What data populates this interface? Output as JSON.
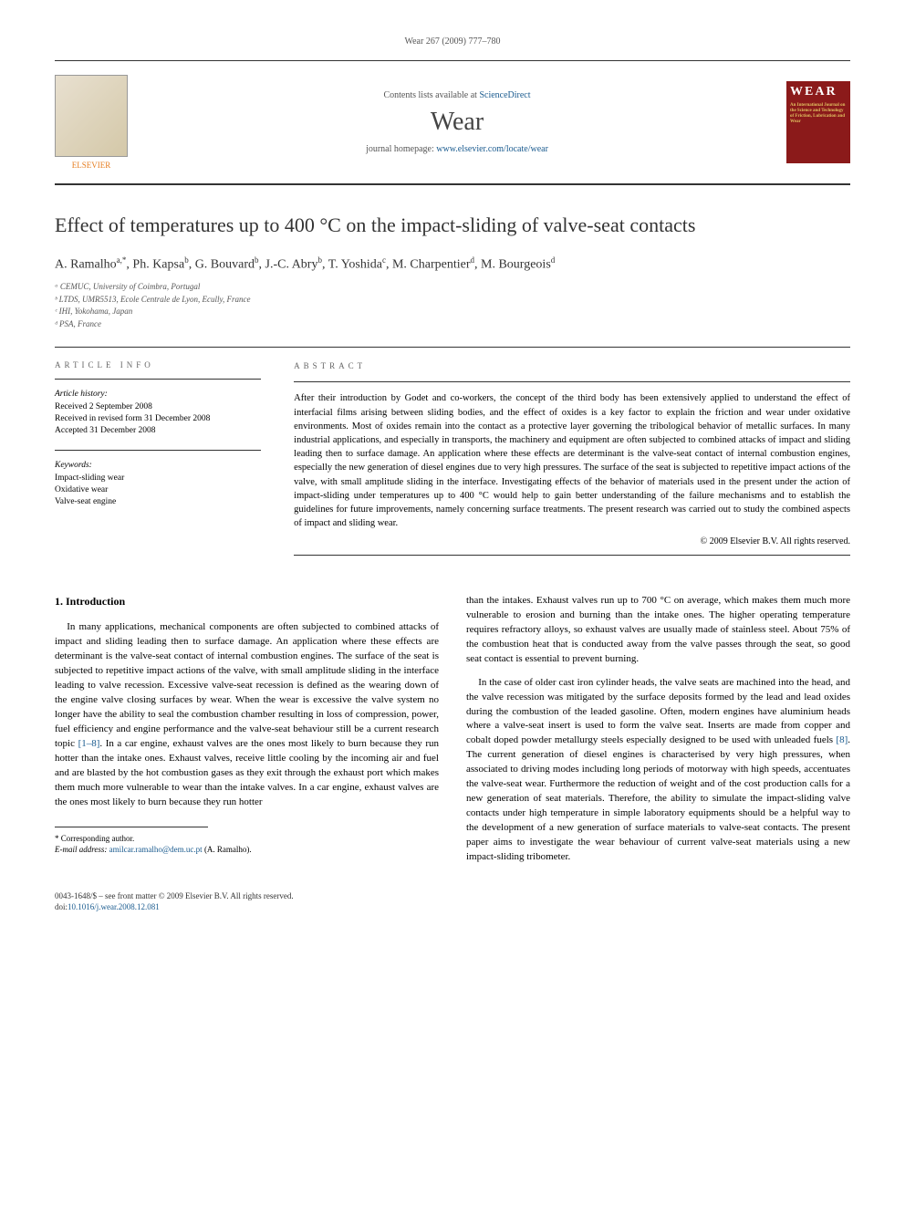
{
  "header": {
    "citation": "Wear 267 (2009) 777–780"
  },
  "banner": {
    "avail_prefix": "Contents lists available at ",
    "avail_link": "ScienceDirect",
    "journal": "Wear",
    "homepage_prefix": "journal homepage: ",
    "homepage_link": "www.elsevier.com/locate/wear",
    "publisher": "ELSEVIER",
    "cover_text": "WEAR"
  },
  "article": {
    "title": "Effect of temperatures up to 400 °C on the impact-sliding of valve-seat contacts",
    "authors_html": "A. Ramalho<sup>a,*</sup>, Ph. Kapsa<sup>b</sup>, G. Bouvard<sup>b</sup>, J.-C. Abry<sup>b</sup>, T. Yoshida<sup>c</sup>, M. Charpentier<sup>d</sup>, M. Bourgeois<sup>d</sup>",
    "affiliations": [
      "ᵃ CEMUC, University of Coimbra, Portugal",
      "ᵇ LTDS, UMR5513, Ecole Centrale de Lyon, Ecully, France",
      "ᶜ IHI, Yokohama, Japan",
      "ᵈ PSA, France"
    ]
  },
  "info": {
    "label": "ARTICLE INFO",
    "history_label": "Article history:",
    "received": "Received 2 September 2008",
    "revised": "Received in revised form 31 December 2008",
    "accepted": "Accepted 31 December 2008",
    "keywords_label": "Keywords:",
    "keywords": [
      "Impact-sliding wear",
      "Oxidative wear",
      "Valve-seat engine"
    ]
  },
  "abstract": {
    "label": "ABSTRACT",
    "text": "After their introduction by Godet and co-workers, the concept of the third body has been extensively applied to understand the effect of interfacial films arising between sliding bodies, and the effect of oxides is a key factor to explain the friction and wear under oxidative environments. Most of oxides remain into the contact as a protective layer governing the tribological behavior of metallic surfaces. In many industrial applications, and especially in transports, the machinery and equipment are often subjected to combined attacks of impact and sliding leading then to surface damage. An application where these effects are determinant is the valve-seat contact of internal combustion engines, especially the new generation of diesel engines due to very high pressures. The surface of the seat is subjected to repetitive impact actions of the valve, with small amplitude sliding in the interface. Investigating effects of the behavior of materials used in the present under the action of impact-sliding under temperatures up to 400 °C would help to gain better understanding of the failure mechanisms and to establish the guidelines for future improvements, namely concerning surface treatments. The present research was carried out to study the combined aspects of impact and sliding wear.",
    "copyright": "© 2009 Elsevier B.V. All rights reserved."
  },
  "body": {
    "intro_heading": "1. Introduction",
    "left_p1": "In many applications, mechanical components are often subjected to combined attacks of impact and sliding leading then to surface damage. An application where these effects are determinant is the valve-seat contact of internal combustion engines. The surface of the seat is subjected to repetitive impact actions of the valve, with small amplitude sliding in the interface leading to valve recession. Excessive valve-seat recession is defined as the wearing down of the engine valve closing surfaces by wear. When the wear is excessive the valve system no longer have the ability to seal the combustion chamber resulting in loss of compression, power, fuel efficiency and engine performance and the valve-seat behaviour still be a current research topic ",
    "left_refs": "[1–8]",
    "left_p1b": ". In a car engine, exhaust valves are the ones most likely to burn because they run hotter than the intake ones. Exhaust valves, receive little cooling by the incoming air and fuel and are blasted by the hot combustion gases as they exit through the exhaust port which makes them much more vulnerable to wear than the intake valves. In a car engine, exhaust valves are the ones most likely to burn because they run hotter",
    "right_p1": "than the intakes. Exhaust valves run up to 700 °C on average, which makes them much more vulnerable to erosion and burning than the intake ones. The higher operating temperature requires refractory alloys, so exhaust valves are usually made of stainless steel. About 75% of the combustion heat that is conducted away from the valve passes through the seat, so good seat contact is essential to prevent burning.",
    "right_p2a": "In the case of older cast iron cylinder heads, the valve seats are machined into the head, and the valve recession was mitigated by the surface deposits formed by the lead and lead oxides during the combustion of the leaded gasoline. Often, modern engines have aluminium heads where a valve-seat insert is used to form the valve seat. Inserts are made from copper and cobalt doped powder metallurgy steels especially designed to be used with unleaded fuels ",
    "right_ref8": "[8]",
    "right_p2b": ". The current generation of diesel engines is characterised by very high pressures, when associated to driving modes including long periods of motorway with high speeds, accentuates the valve-seat wear. Furthermore the reduction of weight and of the cost production calls for a new generation of seat materials. Therefore, the ability to simulate the impact-sliding valve contacts under high temperature in simple laboratory equipments should be a helpful way to the development of a new generation of surface materials to valve-seat contacts. The present paper aims to investigate the wear behaviour of current valve-seat materials using a new impact-sliding tribometer."
  },
  "footnote": {
    "corr": "* Corresponding author.",
    "email_label": "E-mail address: ",
    "email": "amilcar.ramalho@dem.uc.pt",
    "email_suffix": " (A. Ramalho)."
  },
  "footer": {
    "line1": "0043-1648/$ – see front matter © 2009 Elsevier B.V. All rights reserved.",
    "doi_label": "doi:",
    "doi": "10.1016/j.wear.2008.12.081"
  }
}
